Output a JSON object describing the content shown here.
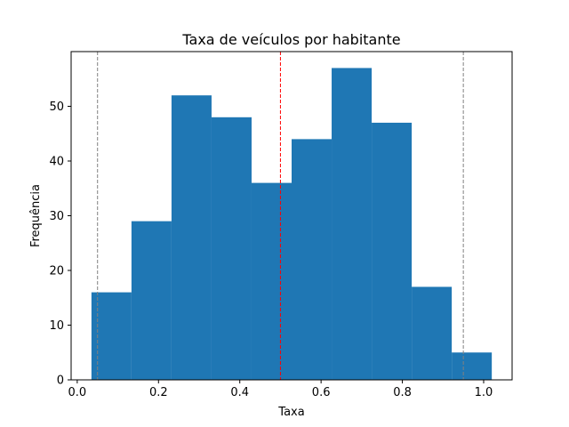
{
  "chart_data": {
    "type": "bar",
    "title": "Taxa de veículos por habitante",
    "xlabel": "Taxa",
    "ylabel": "Frequência",
    "bin_edges": [
      0.035,
      0.1335,
      0.232,
      0.3305,
      0.429,
      0.5275,
      0.626,
      0.7245,
      0.823,
      0.9215,
      1.02
    ],
    "values": [
      16,
      29,
      52,
      48,
      36,
      44,
      57,
      47,
      17,
      5
    ],
    "xlim": [
      -0.015,
      1.07
    ],
    "ylim": [
      0,
      60
    ],
    "x_ticks": [
      0.0,
      0.2,
      0.4,
      0.6,
      0.8,
      1.0
    ],
    "x_tick_labels": [
      "0.0",
      "0.2",
      "0.4",
      "0.6",
      "0.8",
      "1.0"
    ],
    "y_ticks": [
      0,
      10,
      20,
      30,
      40,
      50
    ],
    "y_tick_labels": [
      "0",
      "10",
      "20",
      "30",
      "40",
      "50"
    ],
    "reference_lines": [
      {
        "x": 0.05,
        "color": "#808080",
        "style": "dashed"
      },
      {
        "x": 0.5,
        "color": "#ff0000",
        "style": "dashed"
      },
      {
        "x": 0.95,
        "color": "#808080",
        "style": "dashed"
      }
    ],
    "bar_color": "#1f77b4",
    "grid": false,
    "legend": "none"
  }
}
